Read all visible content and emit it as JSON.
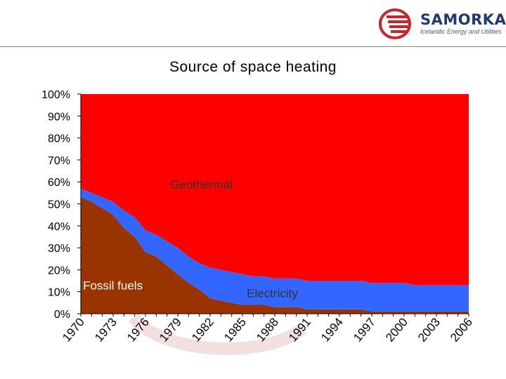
{
  "logo": {
    "name": "SAMORKA",
    "tagline": "Icelandic Energy and Utilities"
  },
  "colors": {
    "fossil": "#993300",
    "electricity": "#3366FF",
    "geothermal": "#FF0000",
    "watermark": "#e9c9c9"
  },
  "chart_data": {
    "type": "area",
    "title": "Source of space heating",
    "stacked": true,
    "xlabel": "",
    "ylabel": "",
    "ylim": [
      0,
      100
    ],
    "y_ticks": [
      "0%",
      "10%",
      "20%",
      "30%",
      "40%",
      "50%",
      "60%",
      "70%",
      "80%",
      "90%",
      "100%"
    ],
    "x_tick_labels": [
      "1970",
      "1973",
      "1976",
      "1979",
      "1982",
      "1985",
      "1988",
      "1991",
      "1994",
      "1997",
      "2000",
      "2003",
      "2006"
    ],
    "x": [
      1970,
      1971,
      1972,
      1973,
      1974,
      1975,
      1976,
      1977,
      1978,
      1979,
      1980,
      1981,
      1982,
      1983,
      1984,
      1985,
      1986,
      1987,
      1988,
      1989,
      1990,
      1991,
      1992,
      1993,
      1994,
      1995,
      1996,
      1997,
      1998,
      1999,
      2000,
      2001,
      2002,
      2003,
      2004,
      2005,
      2006
    ],
    "series": [
      {
        "name": "Fossil fuels",
        "values": [
          53,
          51,
          48,
          45,
          39,
          35,
          28,
          26,
          22,
          18,
          14,
          11,
          7,
          6,
          5,
          4,
          4,
          4,
          3,
          3,
          3,
          2,
          2,
          2,
          2,
          2,
          2,
          1,
          1,
          1,
          1,
          1,
          1,
          1,
          1,
          1,
          1
        ]
      },
      {
        "name": "Electricity",
        "values": [
          4,
          4,
          5,
          6,
          8,
          9,
          10,
          10,
          11,
          12,
          12,
          12,
          14,
          14,
          14,
          14,
          13,
          13,
          13,
          13,
          13,
          13,
          13,
          13,
          13,
          13,
          13,
          13,
          13,
          13,
          13,
          12,
          12,
          12,
          12,
          12,
          12
        ]
      },
      {
        "name": "Geothermal",
        "values": [
          43,
          45,
          47,
          49,
          53,
          56,
          62,
          64,
          67,
          70,
          74,
          77,
          79,
          80,
          81,
          82,
          83,
          83,
          84,
          84,
          84,
          85,
          85,
          85,
          85,
          85,
          85,
          86,
          86,
          86,
          86,
          87,
          87,
          87,
          87,
          87,
          87
        ]
      }
    ],
    "annotations": [
      "Geothermal",
      "Electricity",
      "Fossil fuels"
    ]
  }
}
